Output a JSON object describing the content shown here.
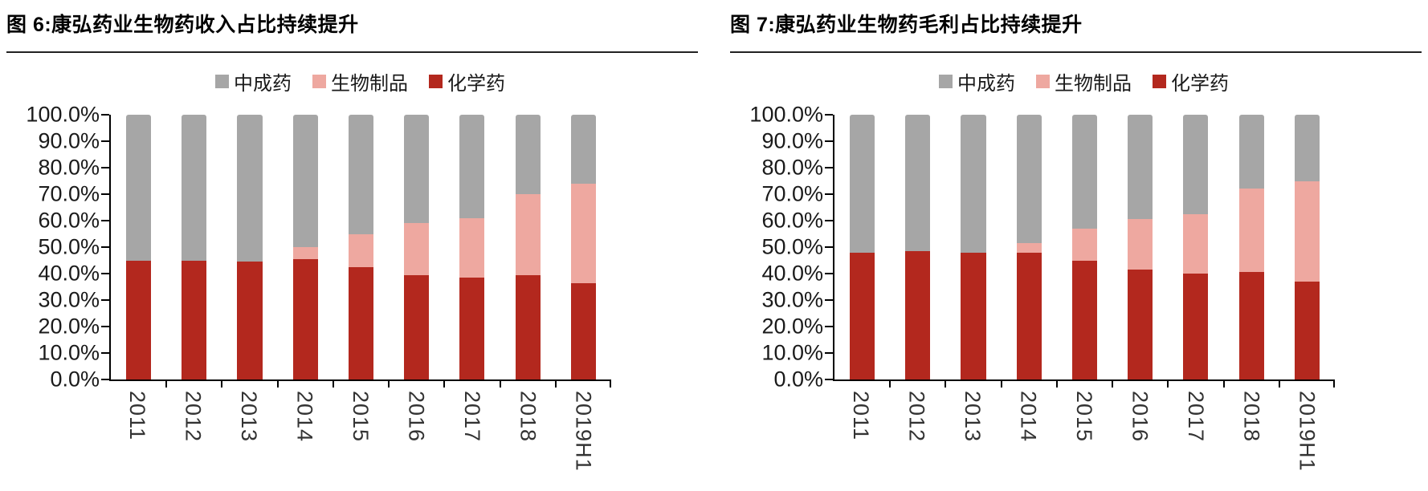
{
  "chart_data": [
    {
      "type": "bar",
      "stacked": true,
      "title": "图 6:康弘药业生物药收入占比持续提升",
      "categories": [
        "2011",
        "2012",
        "2013",
        "2014",
        "2015",
        "2016",
        "2017",
        "2018",
        "2019H1"
      ],
      "series": [
        {
          "name": "化学药",
          "key": "chemical-drug",
          "color": "#B3281E",
          "values": [
            45.0,
            45.0,
            44.5,
            45.5,
            42.5,
            39.5,
            38.5,
            39.5,
            36.5
          ]
        },
        {
          "name": "生物制品",
          "key": "biologics",
          "color": "#EEA8A0",
          "values": [
            0,
            0,
            0,
            4.5,
            12.5,
            19.5,
            22.5,
            30.5,
            37.5
          ]
        },
        {
          "name": "中成药",
          "key": "tcm",
          "color": "#A6A6A6",
          "values": [
            55.0,
            55.0,
            55.5,
            50.0,
            45.0,
            41.0,
            39.0,
            30.0,
            26.0
          ]
        }
      ],
      "legend": [
        {
          "label": "中成药",
          "key": "tcm"
        },
        {
          "label": "生物制品",
          "key": "biologics"
        },
        {
          "label": "化学药",
          "key": "chemical-drug"
        }
      ],
      "legend_position": "top",
      "ylim": [
        0,
        100
      ],
      "ytick_labels": [
        "100.0%",
        "90.0%",
        "80.0%",
        "70.0%",
        "60.0%",
        "50.0%",
        "40.0%",
        "30.0%",
        "20.0%",
        "10.0%",
        "0.0%"
      ],
      "grid": false,
      "xlabel": "",
      "ylabel": ""
    },
    {
      "type": "bar",
      "stacked": true,
      "title": "图 7:康弘药业生物药毛利占比持续提升",
      "categories": [
        "2011",
        "2012",
        "2013",
        "2014",
        "2015",
        "2016",
        "2017",
        "2018",
        "2019H1"
      ],
      "series": [
        {
          "name": "化学药",
          "key": "chemical-drug",
          "color": "#B3281E",
          "values": [
            48.0,
            48.5,
            48.0,
            48.0,
            45.0,
            41.5,
            40.0,
            40.5,
            37.0
          ]
        },
        {
          "name": "生物制品",
          "key": "biologics",
          "color": "#EEA8A0",
          "values": [
            0,
            0,
            0,
            3.5,
            12.0,
            19.0,
            22.5,
            31.5,
            38.0
          ]
        },
        {
          "name": "中成药",
          "key": "tcm",
          "color": "#A6A6A6",
          "values": [
            52.0,
            51.5,
            52.0,
            48.5,
            43.0,
            39.5,
            37.5,
            28.0,
            25.0
          ]
        }
      ],
      "legend": [
        {
          "label": "中成药",
          "key": "tcm"
        },
        {
          "label": "生物制品",
          "key": "biologics"
        },
        {
          "label": "化学药",
          "key": "chemical-drug"
        }
      ],
      "legend_position": "top",
      "ylim": [
        0,
        100
      ],
      "ytick_labels": [
        "100.0%",
        "90.0%",
        "80.0%",
        "70.0%",
        "60.0%",
        "50.0%",
        "40.0%",
        "30.0%",
        "20.0%",
        "10.0%",
        "0.0%"
      ],
      "grid": false,
      "xlabel": "",
      "ylabel": ""
    }
  ]
}
